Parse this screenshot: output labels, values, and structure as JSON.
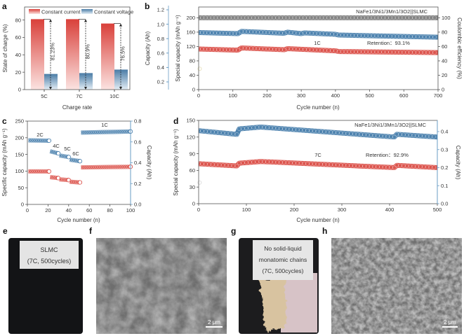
{
  "colors": {
    "red": "#d9463f",
    "blue": "#3f78a8",
    "gray": "#7a7a7a",
    "axis_blue": "#6a9cc4"
  },
  "chart_data": [
    {
      "panel": "a",
      "type": "bar",
      "categories": [
        "5C",
        "7C",
        "10C"
      ],
      "series": [
        {
          "name": "Constant current",
          "values": [
            81,
            81,
            76
          ]
        },
        {
          "name": "Constant voltage",
          "values": [
            18,
            19,
            23
          ]
        }
      ],
      "annotations": [
        "81.23%",
        "80.9%",
        "76.5%"
      ],
      "xlabel": "Charge rate",
      "ylabel": "State of charge (%)",
      "ylim": [
        0,
        95
      ],
      "yticks": [
        0,
        20,
        40,
        60,
        80
      ],
      "legend": "top"
    },
    {
      "panel": "b",
      "type": "scatter",
      "title": "NaFe1/3Ni1/3Mn1/3O2||SLMC",
      "annotations": [
        "1C",
        "Retention：93.1%"
      ],
      "xlabel": "Cycle number (n)",
      "ylabel": "Special capacity (mAh g⁻¹)",
      "ylabel_right": "Coulombic efficiency (%)",
      "ylabel_outer": "Capacity (Ah)",
      "xlim": [
        0,
        700
      ],
      "xticks": [
        0,
        100,
        200,
        300,
        400,
        500,
        600,
        700
      ],
      "ylim": [
        0,
        230
      ],
      "yticks": [
        0,
        40,
        80,
        120,
        160,
        200
      ],
      "ylim_right": [
        0,
        115
      ],
      "yticks_right": [
        0,
        20,
        40,
        60,
        80,
        100
      ],
      "yticks_outer": [
        0.2,
        0.4,
        0.6,
        0.8,
        1.0,
        1.2
      ],
      "series": [
        {
          "name": "Coulombic efficiency",
          "axis": "right",
          "x": [
            0,
            700
          ],
          "y": [
            100,
            100
          ]
        },
        {
          "name": "Capacity (Ah)",
          "axis": "outer",
          "x": [
            0,
            115,
            125,
            250,
            260,
            300,
            310,
            400,
            410,
            700
          ],
          "y": [
            0.885,
            0.87,
            0.9,
            0.875,
            0.89,
            0.87,
            0.88,
            0.86,
            0.85,
            0.82
          ]
        },
        {
          "name": "Specific capacity",
          "axis": "left",
          "x": [
            0,
            115,
            125,
            250,
            260,
            400,
            410,
            700
          ],
          "y": [
            113,
            110,
            116,
            111,
            114,
            108,
            106,
            103
          ]
        }
      ]
    },
    {
      "panel": "c",
      "type": "scatter",
      "annotations": [
        "2C",
        "4C",
        "5C",
        "6C",
        "1C"
      ],
      "xlabel": "Cycle number (n)",
      "ylabel": "Specific capacity (mAh g⁻¹)",
      "ylabel_right": "Capacity (Ah)",
      "xlim": [
        0,
        100
      ],
      "xticks": [
        0,
        20,
        40,
        60,
        80,
        100
      ],
      "ylim": [
        0,
        250
      ],
      "yticks": [
        0,
        50,
        100,
        150,
        200,
        250
      ],
      "ylim_right": [
        0,
        0.8
      ],
      "yticks_right": [
        "0.0",
        "0.2",
        "0.4",
        "0.6",
        "0.8"
      ],
      "series": [
        {
          "name": "Capacity (Ah)",
          "axis": "right",
          "segments": [
            [
              1,
              21,
              0.615,
              0.612
            ],
            [
              22,
              30,
              0.51,
              0.49
            ],
            [
              31,
              40,
              0.47,
              0.455
            ],
            [
              41,
              51,
              0.43,
              0.415
            ],
            [
              52,
              100,
              0.69,
              0.7
            ]
          ]
        },
        {
          "name": "Specific capacity",
          "axis": "left",
          "segments": [
            [
              1,
              21,
              99,
              99
            ],
            [
              22,
              30,
              82,
              79
            ],
            [
              31,
              40,
              75,
              73
            ],
            [
              41,
              51,
              68,
              66
            ],
            [
              52,
              100,
              111,
              113
            ]
          ]
        }
      ]
    },
    {
      "panel": "d",
      "type": "scatter",
      "title": "NaFe1/3Ni1/3Mn1/3O2||SLMC",
      "annotations": [
        "7C",
        "Retention：92.9%"
      ],
      "xlabel": "Cycle number (n)",
      "ylabel": "Special capacity (mAh g⁻¹)",
      "ylabel_right": "Capacity (Ah)",
      "xlim": [
        0,
        500
      ],
      "xticks": [
        0,
        100,
        200,
        300,
        400,
        500
      ],
      "ylim": [
        0,
        150
      ],
      "yticks": [
        0,
        30,
        60,
        90,
        120,
        150
      ],
      "ylim_right": [
        0,
        0.462
      ],
      "yticks_right": [
        "0.0",
        "0.1",
        "0.2",
        "0.3",
        "0.4"
      ],
      "series": [
        {
          "name": "Capacity (Ah)",
          "axis": "right",
          "x": [
            0,
            80,
            85,
            130,
            410,
            415,
            500
          ],
          "y": [
            0.405,
            0.385,
            0.415,
            0.425,
            0.37,
            0.385,
            0.37
          ]
        },
        {
          "name": "Specific capacity",
          "axis": "left",
          "x": [
            0,
            80,
            85,
            130,
            410,
            415,
            500
          ],
          "y": [
            72,
            68,
            73,
            76,
            65,
            69,
            65
          ]
        }
      ]
    }
  ],
  "panels": {
    "a": "a",
    "b": "b",
    "c": "c",
    "d": "d",
    "e": "e",
    "f": "f",
    "g": "g",
    "h": "h"
  },
  "photo_e": {
    "line1": "SLMC",
    "line2": "(7C, 500cycles)"
  },
  "photo_g": {
    "line1": "No solid-liquid",
    "line2": "monatomic chains",
    "line3": "(7C, 500cycles)"
  },
  "scale_f": "2 μm",
  "scale_h": "2 μm"
}
